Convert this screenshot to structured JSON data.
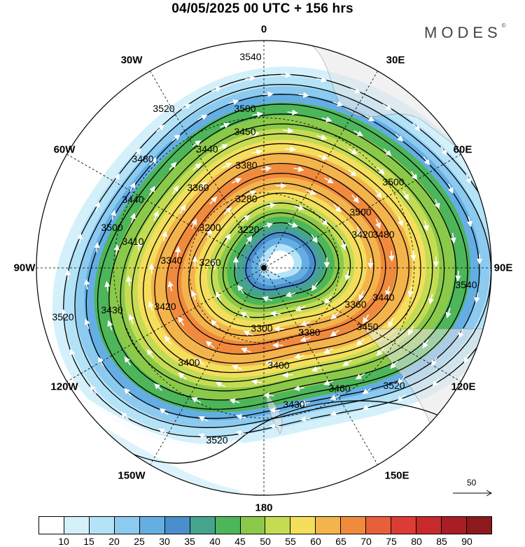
{
  "header": {
    "title": "04/05/2025  00 UTC  + 156 hrs",
    "brand": "MODES"
  },
  "longitude_labels": [
    "0",
    "30E",
    "60E",
    "90E",
    "120E",
    "150E",
    "180",
    "150W",
    "120W",
    "90W",
    "60W",
    "30W"
  ],
  "contour_labels": [
    "3540",
    "3540",
    "3520",
    "3520",
    "3520",
    "3520",
    "3500",
    "3500",
    "3500",
    "3500",
    "3480",
    "3480",
    "3460",
    "3450",
    "3450",
    "3440",
    "3440",
    "3440",
    "3430",
    "3430",
    "3420",
    "3420",
    "3410",
    "3400",
    "3400",
    "3380",
    "3380",
    "3360",
    "3360",
    "3340",
    "3300",
    "3280",
    "3260",
    "3220",
    "3200"
  ],
  "colorbar": {
    "labels": [
      "10",
      "15",
      "20",
      "25",
      "30",
      "35",
      "40",
      "45",
      "50",
      "55",
      "60",
      "65",
      "70",
      "75",
      "80",
      "85",
      "90"
    ],
    "colors": [
      "#ffffff",
      "#d4f0fb",
      "#b4e2f7",
      "#8ccaef",
      "#64aee3",
      "#4a8fcc",
      "#46a38e",
      "#4db55a",
      "#8bc94a",
      "#c4dc54",
      "#f4de5c",
      "#f4b44c",
      "#f08a3c",
      "#e8603a",
      "#dc3c34",
      "#c82a2c",
      "#a81e24",
      "#8c1a1c"
    ]
  },
  "reference_vector": {
    "label": "50"
  }
}
